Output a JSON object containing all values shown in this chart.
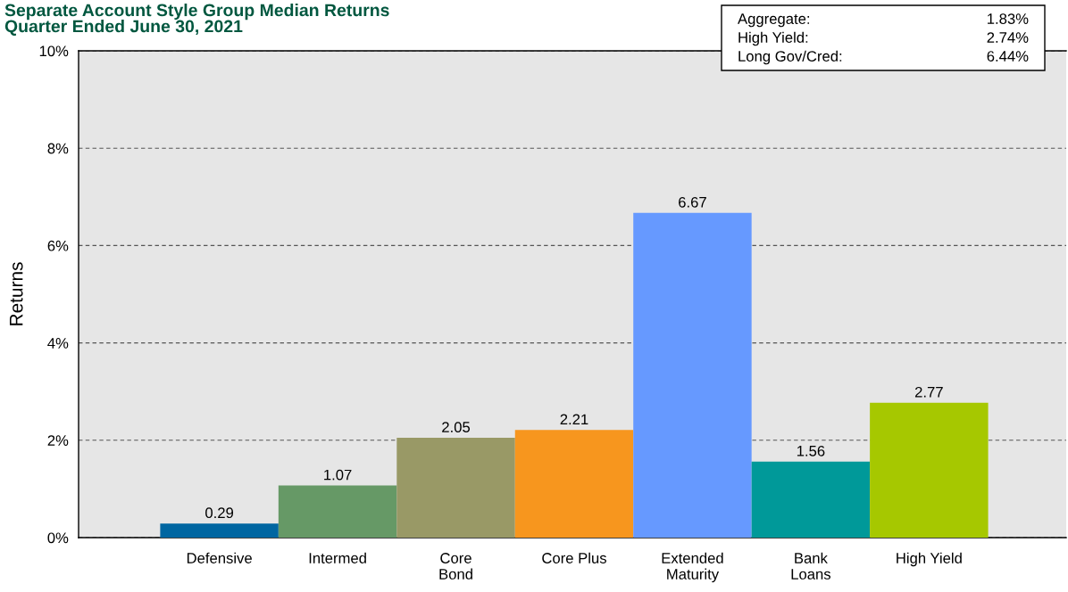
{
  "chart_data": {
    "type": "bar",
    "title": "Separate Account Style Group Median Returns",
    "subtitle": "Quarter Ended June 30, 2021",
    "ylabel": "Returns",
    "categories": [
      "Defensive",
      "Intermed",
      "Core\nBond",
      "Core Plus",
      "Extended\nMaturity",
      "Bank\nLoans",
      "High Yield"
    ],
    "values": [
      0.29,
      1.07,
      2.05,
      2.21,
      6.67,
      1.56,
      2.77
    ],
    "colors": [
      "#0066a1",
      "#669966",
      "#999966",
      "#f7961e",
      "#6699ff",
      "#009999",
      "#a6c800"
    ],
    "ylim": [
      0,
      10
    ],
    "yticks": [
      {
        "value": 0,
        "label": "0%"
      },
      {
        "value": 2,
        "label": "2%"
      },
      {
        "value": 4,
        "label": "4%"
      },
      {
        "value": 6,
        "label": "6%"
      },
      {
        "value": 8,
        "label": "8%"
      },
      {
        "value": 10,
        "label": "10%"
      }
    ],
    "grid": "y",
    "data_labels": true,
    "annotations": [
      "Aggregate:",
      "1.83%",
      "High Yield:",
      "2.74%",
      "Long Gov/Cred:",
      "6.44%"
    ]
  }
}
